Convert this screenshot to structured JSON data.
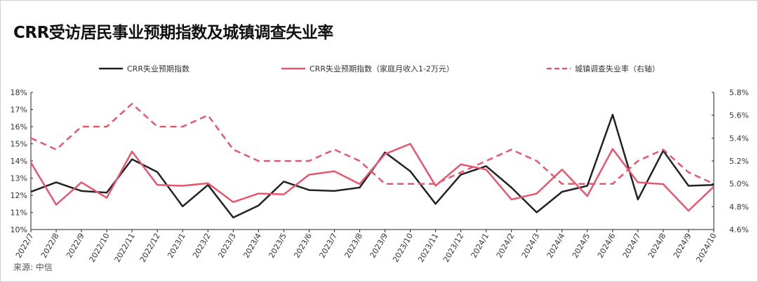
{
  "title": "CRR受访居民事业预期指数及城镇调查失业率",
  "source": "来源: 中信",
  "chart_data": {
    "type": "line",
    "title": "CRR受访居民事业预期指数及城镇调查失业率",
    "categories": [
      "2022/7",
      "2022/8",
      "2022/9",
      "2022/10",
      "2022/11",
      "2022/12",
      "2023/1",
      "2023/2",
      "2023/3",
      "2023/4",
      "2023/5",
      "2023/6",
      "2023/7",
      "2023/8",
      "2023/9",
      "2023/10",
      "2023/11",
      "2023/12",
      "2024/1",
      "2024/2",
      "2024/3",
      "2024/4",
      "2024/5",
      "2024/6",
      "2024/7",
      "2024/8",
      "2024/9",
      "2024/10"
    ],
    "left_axis": {
      "ylim": [
        10,
        18
      ],
      "ticks": [
        "10%",
        "11%",
        "12%",
        "13%",
        "14%",
        "15%",
        "16%",
        "17%",
        "18%"
      ]
    },
    "right_axis": {
      "ylim": [
        4.6,
        5.8
      ],
      "ticks": [
        "4.6%",
        "4.8%",
        "5.0%",
        "5.2%",
        "5.4%",
        "5.6%",
        "5.8%"
      ]
    },
    "legend_position": "top",
    "series": [
      {
        "name": "CRR失业预期指数",
        "axis": "left",
        "color": "#222222",
        "style": "solid",
        "values": [
          12.2,
          12.75,
          12.25,
          12.15,
          14.1,
          13.35,
          11.35,
          12.6,
          10.7,
          11.4,
          12.8,
          12.3,
          12.25,
          12.45,
          14.5,
          13.4,
          11.5,
          13.2,
          13.7,
          12.45,
          11.0,
          12.2,
          12.55,
          16.7,
          11.75,
          14.6,
          12.55,
          12.6
        ]
      },
      {
        "name": "CRR失业预期指数（家庭月收入1-2万元）",
        "axis": "left",
        "color": "#e8566e",
        "style": "solid",
        "values": [
          13.9,
          11.45,
          12.75,
          11.85,
          14.55,
          12.6,
          12.55,
          12.7,
          11.6,
          12.1,
          12.05,
          13.2,
          13.4,
          12.65,
          14.4,
          15.0,
          12.55,
          13.8,
          13.5,
          11.75,
          12.1,
          13.5,
          11.95,
          14.7,
          12.75,
          12.65,
          11.1,
          12.5
        ]
      },
      {
        "name": "城镇调查失业率（右轴）",
        "axis": "right",
        "color": "#e8566e",
        "style": "dashed",
        "values": [
          5.4,
          5.3,
          5.5,
          5.5,
          5.7,
          5.5,
          5.5,
          5.6,
          5.3,
          5.2,
          5.2,
          5.2,
          5.3,
          5.2,
          5.0,
          5.0,
          5.0,
          5.1,
          5.2,
          5.3,
          5.2,
          5.0,
          5.0,
          5.0,
          5.2,
          5.3,
          5.1,
          5.0
        ]
      }
    ]
  }
}
